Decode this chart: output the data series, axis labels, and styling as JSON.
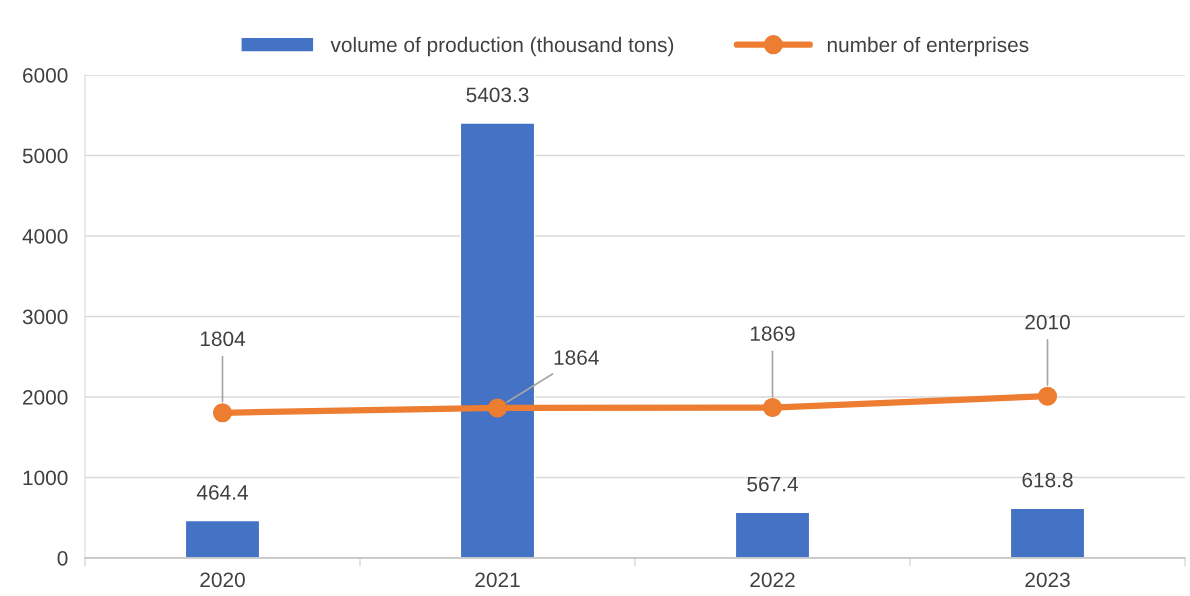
{
  "chart_data": {
    "type": "bar",
    "categories": [
      "2020",
      "2021",
      "2022",
      "2023"
    ],
    "series": [
      {
        "name": "volume of production (thousand tons)",
        "color": "#4472c4",
        "values": [
          464.4,
          5403.3,
          567.4,
          618.8
        ]
      },
      {
        "name": "number of enterprises",
        "type": "line",
        "color": "#ed7d31",
        "marker": "circle",
        "values": [
          1804,
          1864,
          1869,
          2010
        ]
      }
    ],
    "ylim": [
      0,
      6000
    ],
    "yticks": [
      0,
      1000,
      2000,
      3000,
      4000,
      5000,
      6000
    ],
    "grid": "y",
    "legend": "top",
    "data_labels": true
  }
}
